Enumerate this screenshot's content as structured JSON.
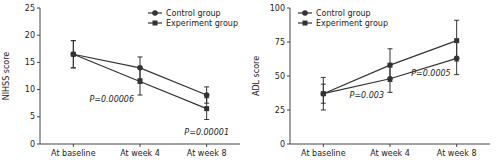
{
  "chart_data": [
    {
      "type": "line",
      "categories": [
        "At baseline",
        "At week 4",
        "At week 8"
      ],
      "series": [
        {
          "name": "Control group",
          "color": "#333333",
          "marker": "circle",
          "values": [
            16.5,
            14.0,
            9.0
          ],
          "errors": [
            2.5,
            2.0,
            1.5
          ]
        },
        {
          "name": "Experiment group",
          "color": "#333333",
          "marker": "square",
          "values": [
            16.5,
            11.5,
            6.5
          ],
          "errors": [
            2.5,
            2.5,
            2.0
          ]
        }
      ],
      "ylabel": "NIHSS score",
      "ylim": [
        0,
        25
      ],
      "yticks": [
        0,
        5,
        10,
        15,
        20,
        25
      ],
      "annotations": [
        {
          "text": "P=0.00006",
          "x": "At week 4",
          "y": 7.5
        },
        {
          "text": "P=0.00001",
          "x": "At week 8",
          "y": 1.5
        }
      ],
      "legend": "upper right",
      "grid": false
    },
    {
      "type": "line",
      "categories": [
        "At baseline",
        "At week 4",
        "At week 8"
      ],
      "series": [
        {
          "name": "Control group",
          "color": "#333333",
          "marker": "circle",
          "values": [
            37.0,
            48.0,
            63.0
          ],
          "errors": [
            12.0,
            10.0,
            12.0
          ]
        },
        {
          "name": "Experiment group",
          "color": "#333333",
          "marker": "square",
          "values": [
            37.0,
            58.0,
            76.0
          ],
          "errors": [
            7.0,
            12.0,
            15.0
          ]
        }
      ],
      "ylabel": "ADL score",
      "ylim": [
        0,
        100
      ],
      "yticks": [
        0,
        25,
        50,
        75,
        100
      ],
      "annotations": [
        {
          "text": "P=0.003",
          "x": "At week 4",
          "y": 33.0
        },
        {
          "text": "P=0.0005",
          "x": "At week 8",
          "y": 49.0
        }
      ],
      "legend": "upper left",
      "grid": false
    }
  ]
}
